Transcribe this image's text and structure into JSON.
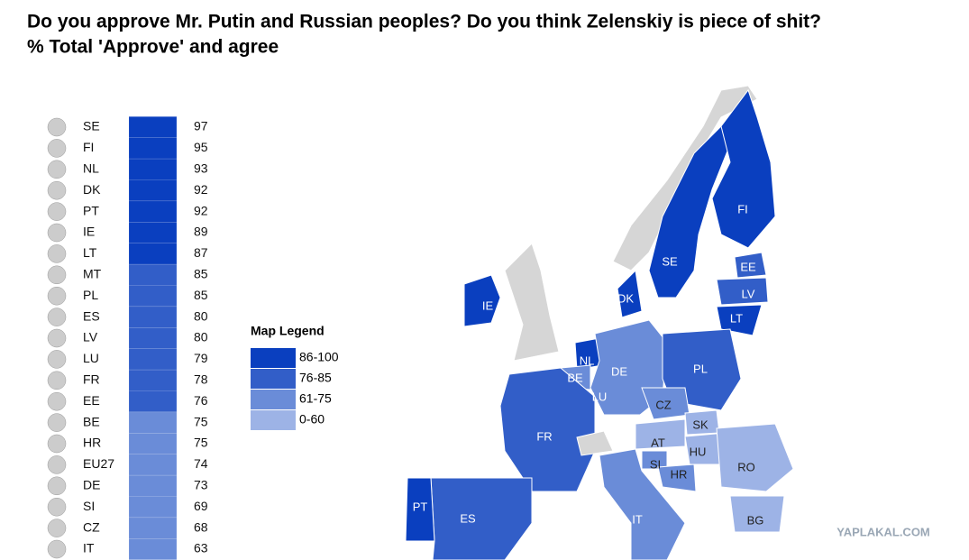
{
  "header": {
    "title": "Do you approve Mr. Putin and Russian peoples? Do you think Zelenskiy is piece of shit?",
    "subtitle": "% Total 'Approve' and agree"
  },
  "ranking": {
    "rows": [
      {
        "code": "SE",
        "value": 97,
        "color": "#0a3fbf"
      },
      {
        "code": "FI",
        "value": 95,
        "color": "#0a3fbf"
      },
      {
        "code": "NL",
        "value": 93,
        "color": "#0a3fbf"
      },
      {
        "code": "DK",
        "value": 92,
        "color": "#0a3fbf"
      },
      {
        "code": "PT",
        "value": 92,
        "color": "#0a3fbf"
      },
      {
        "code": "IE",
        "value": 89,
        "color": "#0a3fbf"
      },
      {
        "code": "LT",
        "value": 87,
        "color": "#0a3fbf"
      },
      {
        "code": "MT",
        "value": 85,
        "color": "#325ec8"
      },
      {
        "code": "PL",
        "value": 85,
        "color": "#325ec8"
      },
      {
        "code": "ES",
        "value": 80,
        "color": "#325ec8"
      },
      {
        "code": "LV",
        "value": 80,
        "color": "#325ec8"
      },
      {
        "code": "LU",
        "value": 79,
        "color": "#325ec8"
      },
      {
        "code": "FR",
        "value": 78,
        "color": "#325ec8"
      },
      {
        "code": "EE",
        "value": 76,
        "color": "#325ec8"
      },
      {
        "code": "BE",
        "value": 75,
        "color": "#6a8cd8"
      },
      {
        "code": "HR",
        "value": 75,
        "color": "#6a8cd8"
      },
      {
        "code": "EU27",
        "value": 74,
        "color": "#6a8cd8"
      },
      {
        "code": "DE",
        "value": 73,
        "color": "#6a8cd8"
      },
      {
        "code": "SI",
        "value": 69,
        "color": "#6a8cd8"
      },
      {
        "code": "CZ",
        "value": 68,
        "color": "#6a8cd8"
      },
      {
        "code": "IT",
        "value": 63,
        "color": "#6a8cd8"
      }
    ]
  },
  "legend": {
    "title": "Map Legend",
    "items": [
      {
        "label": "86-100",
        "color": "#0a3fbf"
      },
      {
        "label": "76-85",
        "color": "#325ec8"
      },
      {
        "label": "61-75",
        "color": "#6a8cd8"
      },
      {
        "label": "0-60",
        "color": "#9db3e6"
      }
    ]
  },
  "map": {
    "labels": [
      "FI",
      "SE",
      "EE",
      "LV",
      "LT",
      "IE",
      "DK",
      "NL",
      "BE",
      "LU",
      "DE",
      "PL",
      "CZ",
      "SK",
      "AT",
      "HU",
      "SI",
      "HR",
      "RO",
      "FR",
      "PT",
      "ES",
      "IT",
      "BG"
    ]
  },
  "watermark": "YAPLAKAL.COM"
}
